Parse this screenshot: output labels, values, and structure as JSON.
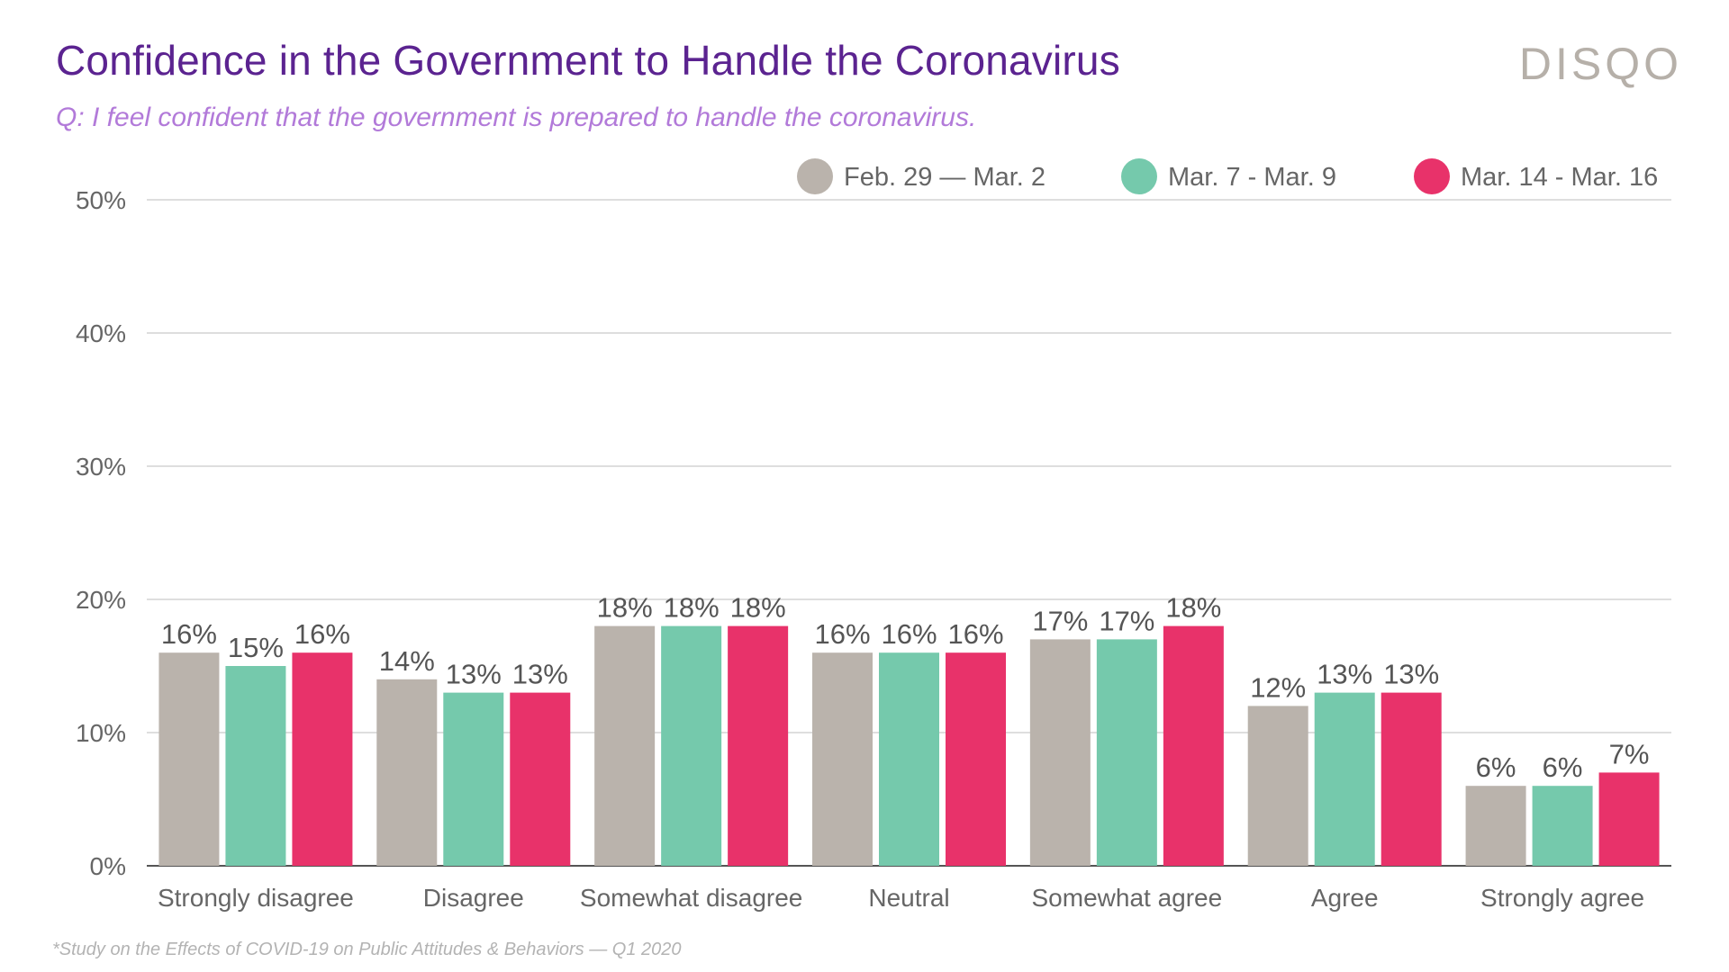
{
  "header": {
    "title": "Confidence in the Government to Handle the Coronavirus",
    "subtitle": "Q: I feel confident that the government is prepared to handle the coronavirus.",
    "logo_text": "DISQO"
  },
  "footnote": "*Study on the Effects of COVID-19 on Public Attitudes & Behaviors — Q1 2020",
  "colors": {
    "title": "#5b2390",
    "subtitle": "#b27ad9",
    "series": [
      "#bab3ac",
      "#75c9ac",
      "#e8326a"
    ]
  },
  "chart_data": {
    "type": "bar",
    "title": "Confidence in the Government to Handle the Coronavirus",
    "subtitle": "Q: I feel confident that the government is prepared to handle the coronavirus.",
    "xlabel": "",
    "ylabel": "",
    "ylim": [
      0,
      50
    ],
    "yticks": [
      "0%",
      "10%",
      "20%",
      "30%",
      "40%",
      "50%"
    ],
    "grid": true,
    "legend_position": "top-right",
    "categories": [
      "Strongly disagree",
      "Disagree",
      "Somewhat disagree",
      "Neutral",
      "Somewhat agree",
      "Agree",
      "Strongly agree"
    ],
    "series": [
      {
        "name": "Feb. 29 — Mar. 2",
        "color": "#bab3ac",
        "values": [
          16,
          14,
          18,
          16,
          17,
          12,
          6
        ]
      },
      {
        "name": "Mar. 7 - Mar. 9",
        "color": "#75c9ac",
        "values": [
          15,
          13,
          18,
          16,
          17,
          13,
          6
        ]
      },
      {
        "name": "Mar. 14 - Mar. 16",
        "color": "#e8326a",
        "values": [
          16,
          13,
          18,
          16,
          18,
          13,
          7
        ]
      }
    ],
    "data_labels": true,
    "value_suffix": "%"
  }
}
